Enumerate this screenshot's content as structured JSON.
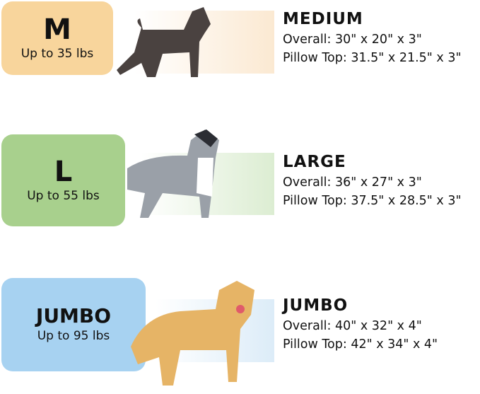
{
  "sizes": [
    {
      "badge": "M",
      "weight": "Up to 35 lbs",
      "name": "MEDIUM",
      "overall": "Overall: 30\" x 20\" x 3\"",
      "pillow": "Pillow Top: 31.5\" x 21.5\" x 3\"",
      "color": "#f8d59c",
      "dog": "schnauzer"
    },
    {
      "badge": "L",
      "weight": "Up to 55 lbs",
      "name": "LARGE",
      "overall": "Overall: 36\" x 27\" x 3\"",
      "pillow": "Pillow Top: 37.5\" x 28.5\" x 3\"",
      "color": "#a8d08d",
      "dog": "australian-shepherd"
    },
    {
      "badge": "JUMBO",
      "weight": "Up to 95 lbs",
      "name": "JUMBO",
      "overall": "Overall: 40\" x 32\" x 4\"",
      "pillow": "Pillow Top: 42\" x 34\" x 4\"",
      "color": "#a7d2f1",
      "dog": "golden-retriever"
    }
  ]
}
